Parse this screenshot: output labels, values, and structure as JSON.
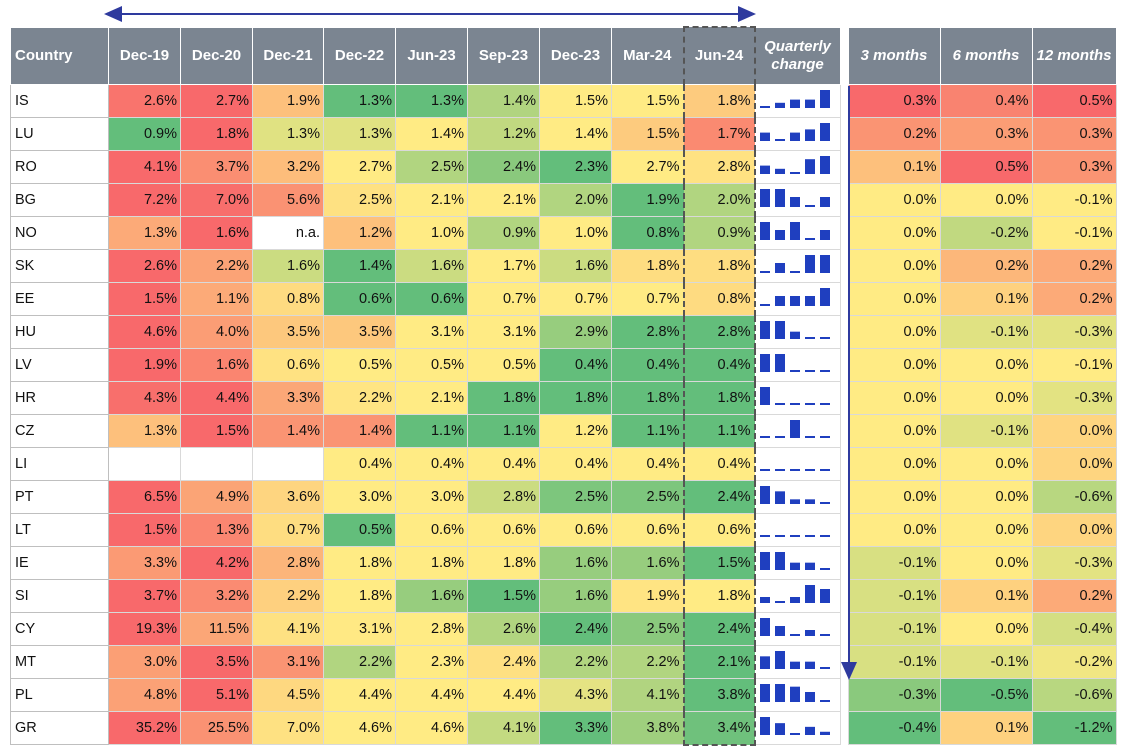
{
  "chart_data": {
    "type": "table",
    "headers": {
      "country": "Country",
      "periods": [
        "Dec-19",
        "Dec-20",
        "Dec-21",
        "Dec-22",
        "Jun-23",
        "Sep-23",
        "Dec-23",
        "Mar-24",
        "Jun-24"
      ],
      "quarterly": "Quarterly change",
      "changes": [
        "3 months",
        "6 months",
        "12 months"
      ]
    },
    "rows": [
      {
        "country": "IS",
        "values": [
          "2.6%",
          "2.7%",
          "1.9%",
          "1.3%",
          "1.3%",
          "1.4%",
          "1.5%",
          "1.5%",
          "1.8%"
        ],
        "changes": [
          "0.3%",
          "0.4%",
          "0.5%"
        ]
      },
      {
        "country": "LU",
        "values": [
          "0.9%",
          "1.8%",
          "1.3%",
          "1.3%",
          "1.4%",
          "1.2%",
          "1.4%",
          "1.5%",
          "1.7%"
        ],
        "changes": [
          "0.2%",
          "0.3%",
          "0.3%"
        ]
      },
      {
        "country": "RO",
        "values": [
          "4.1%",
          "3.7%",
          "3.2%",
          "2.7%",
          "2.5%",
          "2.4%",
          "2.3%",
          "2.7%",
          "2.8%"
        ],
        "changes": [
          "0.1%",
          "0.5%",
          "0.3%"
        ]
      },
      {
        "country": "BG",
        "values": [
          "7.2%",
          "7.0%",
          "5.6%",
          "2.5%",
          "2.1%",
          "2.1%",
          "2.0%",
          "1.9%",
          "2.0%"
        ],
        "changes": [
          "0.0%",
          "0.0%",
          "-0.1%"
        ]
      },
      {
        "country": "NO",
        "values": [
          "1.3%",
          "1.6%",
          "n.a.",
          "1.2%",
          "1.0%",
          "0.9%",
          "1.0%",
          "0.8%",
          "0.9%"
        ],
        "changes": [
          "0.0%",
          "-0.2%",
          "-0.1%"
        ]
      },
      {
        "country": "SK",
        "values": [
          "2.6%",
          "2.2%",
          "1.6%",
          "1.4%",
          "1.6%",
          "1.7%",
          "1.6%",
          "1.8%",
          "1.8%"
        ],
        "changes": [
          "0.0%",
          "0.2%",
          "0.2%"
        ]
      },
      {
        "country": "EE",
        "values": [
          "1.5%",
          "1.1%",
          "0.8%",
          "0.6%",
          "0.6%",
          "0.7%",
          "0.7%",
          "0.7%",
          "0.8%"
        ],
        "changes": [
          "0.0%",
          "0.1%",
          "0.2%"
        ]
      },
      {
        "country": "HU",
        "values": [
          "4.6%",
          "4.0%",
          "3.5%",
          "3.5%",
          "3.1%",
          "3.1%",
          "2.9%",
          "2.8%",
          "2.8%"
        ],
        "changes": [
          "0.0%",
          "-0.1%",
          "-0.3%"
        ]
      },
      {
        "country": "LV",
        "values": [
          "1.9%",
          "1.6%",
          "0.6%",
          "0.5%",
          "0.5%",
          "0.5%",
          "0.4%",
          "0.4%",
          "0.4%"
        ],
        "changes": [
          "0.0%",
          "0.0%",
          "-0.1%"
        ]
      },
      {
        "country": "HR",
        "values": [
          "4.3%",
          "4.4%",
          "3.3%",
          "2.2%",
          "2.1%",
          "1.8%",
          "1.8%",
          "1.8%",
          "1.8%"
        ],
        "changes": [
          "0.0%",
          "0.0%",
          "-0.3%"
        ]
      },
      {
        "country": "CZ",
        "values": [
          "1.3%",
          "1.5%",
          "1.4%",
          "1.4%",
          "1.1%",
          "1.1%",
          "1.2%",
          "1.1%",
          "1.1%"
        ],
        "changes": [
          "0.0%",
          "-0.1%",
          "0.0%"
        ]
      },
      {
        "country": "LI",
        "values": [
          "",
          "",
          "",
          "0.4%",
          "0.4%",
          "0.4%",
          "0.4%",
          "0.4%",
          "0.4%"
        ],
        "changes": [
          "0.0%",
          "0.0%",
          "0.0%"
        ]
      },
      {
        "country": "PT",
        "values": [
          "6.5%",
          "4.9%",
          "3.6%",
          "3.0%",
          "3.0%",
          "2.8%",
          "2.5%",
          "2.5%",
          "2.4%"
        ],
        "changes": [
          "0.0%",
          "0.0%",
          "-0.6%"
        ]
      },
      {
        "country": "LT",
        "values": [
          "1.5%",
          "1.3%",
          "0.7%",
          "0.5%",
          "0.6%",
          "0.6%",
          "0.6%",
          "0.6%",
          "0.6%"
        ],
        "changes": [
          "0.0%",
          "0.0%",
          "0.0%"
        ]
      },
      {
        "country": "IE",
        "values": [
          "3.3%",
          "4.2%",
          "2.8%",
          "1.8%",
          "1.8%",
          "1.8%",
          "1.6%",
          "1.6%",
          "1.5%"
        ],
        "changes": [
          "-0.1%",
          "0.0%",
          "-0.3%"
        ]
      },
      {
        "country": "SI",
        "values": [
          "3.7%",
          "3.2%",
          "2.2%",
          "1.8%",
          "1.6%",
          "1.5%",
          "1.6%",
          "1.9%",
          "1.8%"
        ],
        "changes": [
          "-0.1%",
          "0.1%",
          "0.2%"
        ]
      },
      {
        "country": "CY",
        "values": [
          "19.3%",
          "11.5%",
          "4.1%",
          "3.1%",
          "2.8%",
          "2.6%",
          "2.4%",
          "2.5%",
          "2.4%"
        ],
        "changes": [
          "-0.1%",
          "0.0%",
          "-0.4%"
        ]
      },
      {
        "country": "MT",
        "values": [
          "3.0%",
          "3.5%",
          "3.1%",
          "2.2%",
          "2.3%",
          "2.4%",
          "2.2%",
          "2.2%",
          "2.1%"
        ],
        "changes": [
          "-0.1%",
          "-0.1%",
          "-0.2%"
        ]
      },
      {
        "country": "PL",
        "values": [
          "4.8%",
          "5.1%",
          "4.5%",
          "4.4%",
          "4.4%",
          "4.4%",
          "4.3%",
          "4.1%",
          "3.8%"
        ],
        "changes": [
          "-0.3%",
          "-0.5%",
          "-0.6%"
        ]
      },
      {
        "country": "GR",
        "values": [
          "35.2%",
          "25.5%",
          "7.0%",
          "4.6%",
          "4.6%",
          "4.1%",
          "3.3%",
          "3.8%",
          "3.4%"
        ],
        "changes": [
          "-0.4%",
          "0.1%",
          "-1.2%"
        ]
      }
    ]
  },
  "colors": {
    "header_bg": "#7b8591",
    "arrow": "#2e3a9e",
    "spark_bar": "#1f3fbf",
    "scale_low": "#63be7b",
    "scale_mid": "#ffeb84",
    "scale_high": "#f8696b"
  }
}
